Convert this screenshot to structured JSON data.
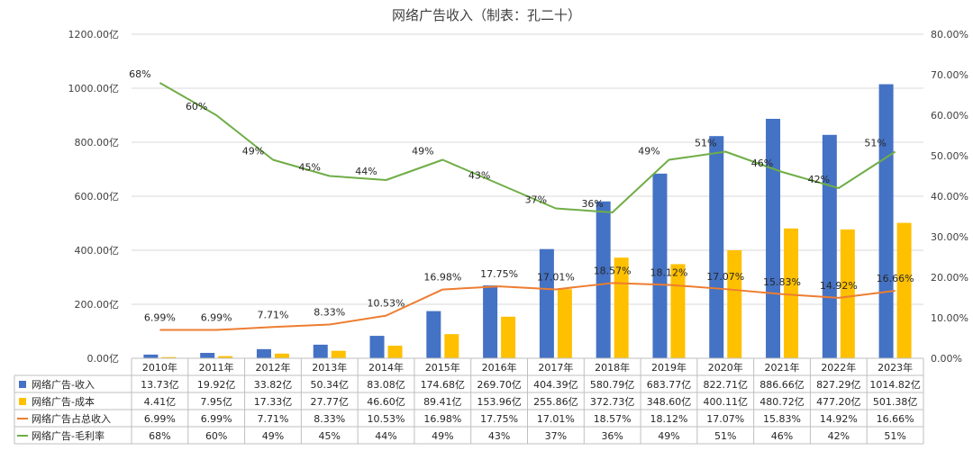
{
  "chart_data": {
    "type": "bar",
    "title": "网络广告收入（制表：孔二十）",
    "categories": [
      "2010年",
      "2011年",
      "2012年",
      "2013年",
      "2014年",
      "2015年",
      "2016年",
      "2017年",
      "2018年",
      "2019年",
      "2020年",
      "2021年",
      "2022年",
      "2023年"
    ],
    "left_axis": {
      "range": [
        0,
        1200
      ],
      "ticks": [
        0,
        200,
        400,
        600,
        800,
        1000,
        1200
      ],
      "tick_labels": [
        "0.00亿",
        "200.00亿",
        "400.00亿",
        "600.00亿",
        "800.00亿",
        "1000.00亿",
        "1200.00亿"
      ]
    },
    "right_axis": {
      "range": [
        0,
        80
      ],
      "ticks": [
        0,
        10,
        20,
        30,
        40,
        50,
        60,
        70,
        80
      ],
      "tick_labels": [
        "0.00%",
        "10.00%",
        "20.00%",
        "30.00%",
        "40.00%",
        "50.00%",
        "60.00%",
        "70.00%",
        "80.00%"
      ]
    },
    "grid": true,
    "legend": "data-table",
    "series": [
      {
        "name": "网络广告-收入",
        "type": "bar",
        "axis": "left",
        "color": "#4472C4",
        "values": [
          13.73,
          19.92,
          33.82,
          50.34,
          83.08,
          174.68,
          269.7,
          404.39,
          580.79,
          683.77,
          822.71,
          886.66,
          827.29,
          1014.82
        ],
        "labels": [
          "13.73亿",
          "19.92亿",
          "33.82亿",
          "50.34亿",
          "83.08亿",
          "174.68亿",
          "269.70亿",
          "404.39亿",
          "580.79亿",
          "683.77亿",
          "822.71亿",
          "886.66亿",
          "827.29亿",
          "1014.82亿"
        ]
      },
      {
        "name": "网络广告-成本",
        "type": "bar",
        "axis": "left",
        "color": "#FFC000",
        "values": [
          4.41,
          7.95,
          17.33,
          27.77,
          46.6,
          89.41,
          153.96,
          255.86,
          372.73,
          348.6,
          400.11,
          480.72,
          477.2,
          501.38
        ],
        "labels": [
          "4.41亿",
          "7.95亿",
          "17.33亿",
          "27.77亿",
          "46.60亿",
          "89.41亿",
          "153.96亿",
          "255.86亿",
          "372.73亿",
          "348.60亿",
          "400.11亿",
          "480.72亿",
          "477.20亿",
          "501.38亿"
        ]
      },
      {
        "name": "网络广告占总收入",
        "type": "line",
        "axis": "right",
        "color": "#ED7D31",
        "values": [
          6.99,
          6.99,
          7.71,
          8.33,
          10.53,
          16.98,
          17.75,
          17.01,
          18.57,
          18.12,
          17.07,
          15.83,
          14.92,
          16.66
        ],
        "labels": [
          "6.99%",
          "6.99%",
          "7.71%",
          "8.33%",
          "10.53%",
          "16.98%",
          "17.75%",
          "17.01%",
          "18.57%",
          "18.12%",
          "17.07%",
          "15.83%",
          "14.92%",
          "16.66%"
        ]
      },
      {
        "name": "网络广告-毛利率",
        "type": "line",
        "axis": "right",
        "color": "#70AD47",
        "values": [
          68,
          60,
          49,
          45,
          44,
          49,
          43,
          37,
          36,
          49,
          51,
          46,
          42,
          51
        ],
        "labels": [
          "68%",
          "60%",
          "49%",
          "45%",
          "44%",
          "49%",
          "43%",
          "37%",
          "36%",
          "49%",
          "51%",
          "46%",
          "42%",
          "51%"
        ]
      }
    ]
  }
}
